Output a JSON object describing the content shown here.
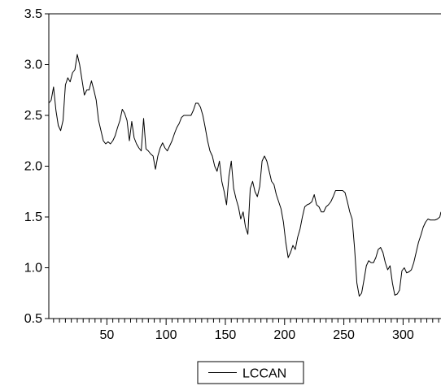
{
  "chart_data": {
    "type": "line",
    "title": "",
    "xlabel": "",
    "ylabel": "",
    "xlim": [
      1,
      332
    ],
    "ylim": [
      0.5,
      3.5
    ],
    "grid": false,
    "legend_position": "bottom-center",
    "x_tick_labels": [
      "50",
      "100",
      "150",
      "200",
      "250",
      "300"
    ],
    "x_ticks": [
      50,
      100,
      150,
      200,
      250,
      300
    ],
    "y_tick_labels": [
      "0.5",
      "1.0",
      "1.5",
      "2.0",
      "2.5",
      "3.0",
      "3.5"
    ],
    "y_ticks": [
      0.5,
      1.0,
      1.5,
      2.0,
      2.5,
      3.0,
      3.5
    ],
    "series": [
      {
        "name": "LCCAN",
        "color": "#000000",
        "points": [
          [
            1,
            2.62
          ],
          [
            3,
            2.65
          ],
          [
            5,
            2.78
          ],
          [
            7,
            2.55
          ],
          [
            9,
            2.4
          ],
          [
            11,
            2.35
          ],
          [
            13,
            2.45
          ],
          [
            15,
            2.8
          ],
          [
            17,
            2.87
          ],
          [
            19,
            2.83
          ],
          [
            21,
            2.92
          ],
          [
            23,
            2.95
          ],
          [
            25,
            3.1
          ],
          [
            27,
            3.0
          ],
          [
            29,
            2.85
          ],
          [
            31,
            2.7
          ],
          [
            33,
            2.75
          ],
          [
            35,
            2.75
          ],
          [
            37,
            2.84
          ],
          [
            39,
            2.75
          ],
          [
            41,
            2.65
          ],
          [
            43,
            2.45
          ],
          [
            45,
            2.35
          ],
          [
            47,
            2.25
          ],
          [
            49,
            2.22
          ],
          [
            51,
            2.24
          ],
          [
            53,
            2.22
          ],
          [
            55,
            2.25
          ],
          [
            57,
            2.3
          ],
          [
            59,
            2.38
          ],
          [
            61,
            2.45
          ],
          [
            63,
            2.56
          ],
          [
            65,
            2.52
          ],
          [
            67,
            2.45
          ],
          [
            69,
            2.25
          ],
          [
            71,
            2.44
          ],
          [
            73,
            2.28
          ],
          [
            75,
            2.22
          ],
          [
            77,
            2.18
          ],
          [
            79,
            2.15
          ],
          [
            81,
            2.47
          ],
          [
            83,
            2.17
          ],
          [
            85,
            2.15
          ],
          [
            87,
            2.12
          ],
          [
            89,
            2.1
          ],
          [
            91,
            1.97
          ],
          [
            93,
            2.1
          ],
          [
            95,
            2.18
          ],
          [
            97,
            2.23
          ],
          [
            99,
            2.18
          ],
          [
            101,
            2.15
          ],
          [
            103,
            2.2
          ],
          [
            105,
            2.25
          ],
          [
            107,
            2.32
          ],
          [
            109,
            2.38
          ],
          [
            111,
            2.42
          ],
          [
            113,
            2.48
          ],
          [
            115,
            2.5
          ],
          [
            117,
            2.5
          ],
          [
            119,
            2.5
          ],
          [
            121,
            2.5
          ],
          [
            123,
            2.55
          ],
          [
            125,
            2.62
          ],
          [
            127,
            2.62
          ],
          [
            129,
            2.58
          ],
          [
            131,
            2.5
          ],
          [
            133,
            2.38
          ],
          [
            135,
            2.25
          ],
          [
            137,
            2.15
          ],
          [
            139,
            2.1
          ],
          [
            141,
            2.0
          ],
          [
            143,
            1.95
          ],
          [
            145,
            2.05
          ],
          [
            147,
            1.85
          ],
          [
            149,
            1.75
          ],
          [
            151,
            1.62
          ],
          [
            153,
            1.9
          ],
          [
            155,
            2.05
          ],
          [
            157,
            1.78
          ],
          [
            159,
            1.68
          ],
          [
            161,
            1.6
          ],
          [
            163,
            1.48
          ],
          [
            165,
            1.55
          ],
          [
            167,
            1.4
          ],
          [
            169,
            1.33
          ],
          [
            171,
            1.78
          ],
          [
            173,
            1.85
          ],
          [
            175,
            1.75
          ],
          [
            177,
            1.7
          ],
          [
            179,
            1.8
          ],
          [
            181,
            2.05
          ],
          [
            183,
            2.1
          ],
          [
            185,
            2.05
          ],
          [
            187,
            1.95
          ],
          [
            189,
            1.85
          ],
          [
            191,
            1.82
          ],
          [
            193,
            1.72
          ],
          [
            195,
            1.65
          ],
          [
            197,
            1.58
          ],
          [
            199,
            1.45
          ],
          [
            201,
            1.25
          ],
          [
            203,
            1.1
          ],
          [
            205,
            1.15
          ],
          [
            207,
            1.22
          ],
          [
            209,
            1.18
          ],
          [
            211,
            1.3
          ],
          [
            213,
            1.38
          ],
          [
            215,
            1.5
          ],
          [
            217,
            1.6
          ],
          [
            219,
            1.62
          ],
          [
            221,
            1.63
          ],
          [
            223,
            1.65
          ],
          [
            225,
            1.72
          ],
          [
            227,
            1.62
          ],
          [
            229,
            1.6
          ],
          [
            231,
            1.55
          ],
          [
            233,
            1.55
          ],
          [
            235,
            1.6
          ],
          [
            237,
            1.62
          ],
          [
            239,
            1.65
          ],
          [
            241,
            1.7
          ],
          [
            243,
            1.76
          ],
          [
            245,
            1.76
          ],
          [
            247,
            1.76
          ],
          [
            249,
            1.76
          ],
          [
            251,
            1.74
          ],
          [
            253,
            1.65
          ],
          [
            255,
            1.55
          ],
          [
            257,
            1.48
          ],
          [
            259,
            1.2
          ],
          [
            261,
            0.85
          ],
          [
            263,
            0.72
          ],
          [
            265,
            0.75
          ],
          [
            267,
            0.88
          ],
          [
            269,
            1.02
          ],
          [
            271,
            1.07
          ],
          [
            273,
            1.05
          ],
          [
            275,
            1.05
          ],
          [
            277,
            1.1
          ],
          [
            279,
            1.18
          ],
          [
            281,
            1.2
          ],
          [
            283,
            1.15
          ],
          [
            285,
            1.05
          ],
          [
            287,
            0.98
          ],
          [
            289,
            1.02
          ],
          [
            291,
            0.85
          ],
          [
            293,
            0.73
          ],
          [
            295,
            0.74
          ],
          [
            297,
            0.78
          ],
          [
            299,
            0.97
          ],
          [
            301,
            1.0
          ],
          [
            303,
            0.95
          ],
          [
            305,
            0.96
          ],
          [
            307,
            0.98
          ],
          [
            309,
            1.05
          ],
          [
            311,
            1.15
          ],
          [
            313,
            1.25
          ],
          [
            315,
            1.32
          ],
          [
            317,
            1.4
          ],
          [
            319,
            1.45
          ],
          [
            321,
            1.48
          ],
          [
            323,
            1.47
          ],
          [
            325,
            1.47
          ],
          [
            327,
            1.47
          ],
          [
            329,
            1.48
          ],
          [
            331,
            1.5
          ],
          [
            332,
            1.55
          ]
        ]
      }
    ]
  }
}
